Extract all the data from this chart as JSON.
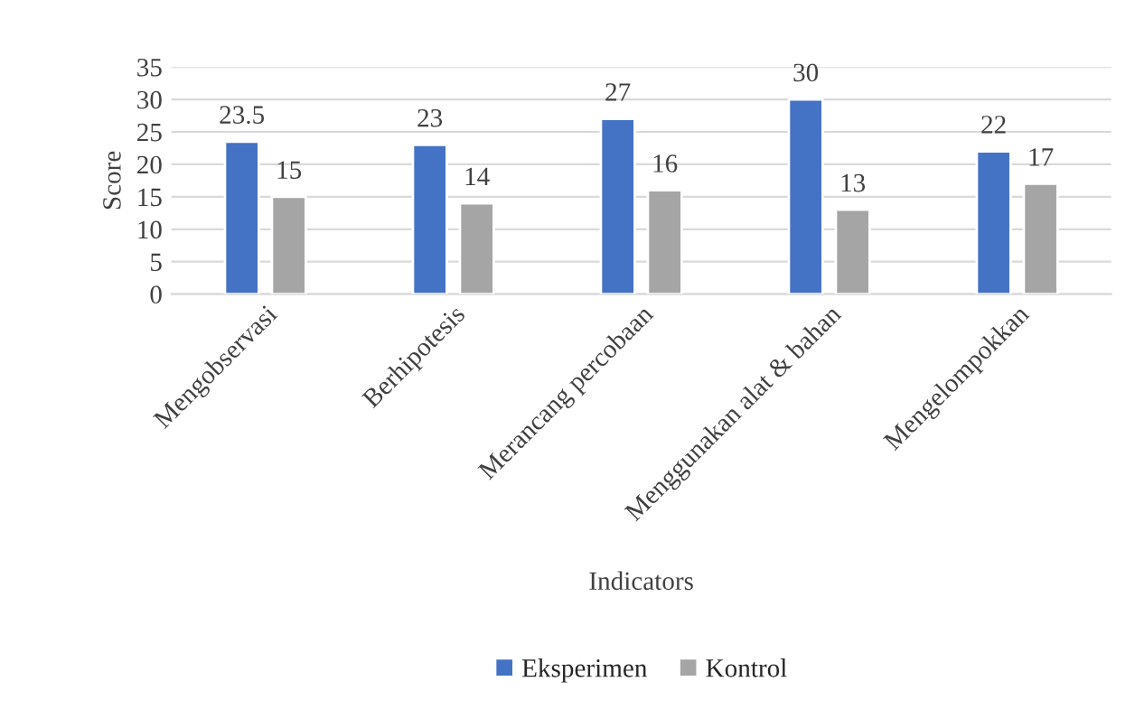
{
  "chart_data": {
    "type": "bar",
    "xlabel": "Indicators",
    "ylabel": "Score",
    "categories": [
      "Mengobservasi",
      "Berhipotesis",
      "Merancang percobaan",
      "Menggunakan alat & bahan",
      "Mengelompokkan"
    ],
    "series": [
      {
        "name": "Eksperimen",
        "color": "#4472c4",
        "values": [
          23.5,
          23,
          27,
          30,
          22
        ]
      },
      {
        "name": "Kontrol",
        "color": "#a5a5a5",
        "values": [
          15,
          14,
          16,
          13,
          17
        ]
      }
    ],
    "ylim": [
      0,
      35
    ],
    "yticks": [
      0,
      5,
      10,
      15,
      20,
      25,
      30,
      35
    ],
    "grid": "y",
    "legend": "bottom",
    "data_labels": true
  }
}
